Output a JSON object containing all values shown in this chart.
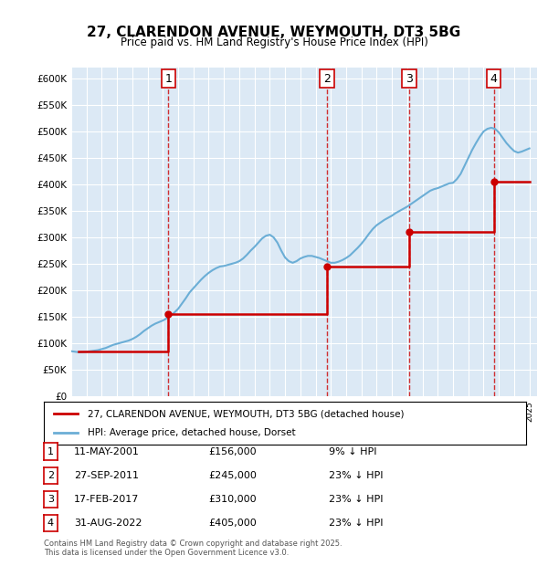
{
  "title": "27, CLARENDON AVENUE, WEYMOUTH, DT3 5BG",
  "subtitle": "Price paid vs. HM Land Registry's House Price Index (HPI)",
  "ylabel_ticks": [
    "£0",
    "£50K",
    "£100K",
    "£150K",
    "£200K",
    "£250K",
    "£300K",
    "£350K",
    "£400K",
    "£450K",
    "£500K",
    "£550K",
    "£600K"
  ],
  "ylim": [
    0,
    620000
  ],
  "xlim_start": 1995.0,
  "xlim_end": 2025.5,
  "transactions": [
    {
      "num": 1,
      "date": "11-MAY-2001",
      "price": 156000,
      "pct": "9%",
      "x": 2001.36
    },
    {
      "num": 2,
      "date": "27-SEP-2011",
      "price": 245000,
      "pct": "23%",
      "x": 2011.74
    },
    {
      "num": 3,
      "date": "17-FEB-2017",
      "price": 310000,
      "pct": "23%",
      "x": 2017.12
    },
    {
      "num": 4,
      "date": "31-AUG-2022",
      "price": 405000,
      "pct": "23%",
      "x": 2022.66
    }
  ],
  "legend_line1": "27, CLARENDON AVENUE, WEYMOUTH, DT3 5BG (detached house)",
  "legend_line2": "HPI: Average price, detached house, Dorset",
  "footer1": "Contains HM Land Registry data © Crown copyright and database right 2025.",
  "footer2": "This data is licensed under the Open Government Licence v3.0.",
  "hpi_color": "#6baed6",
  "price_color": "#cc0000",
  "background_color": "#dce9f5",
  "plot_bg": "#dce9f5",
  "grid_color": "#ffffff",
  "dashed_color": "#cc0000",
  "hpi_data_x": [
    1995.0,
    1995.25,
    1995.5,
    1995.75,
    1996.0,
    1996.25,
    1996.5,
    1996.75,
    1997.0,
    1997.25,
    1997.5,
    1997.75,
    1998.0,
    1998.25,
    1998.5,
    1998.75,
    1999.0,
    1999.25,
    1999.5,
    1999.75,
    2000.0,
    2000.25,
    2000.5,
    2000.75,
    2001.0,
    2001.25,
    2001.5,
    2001.75,
    2002.0,
    2002.25,
    2002.5,
    2002.75,
    2003.0,
    2003.25,
    2003.5,
    2003.75,
    2004.0,
    2004.25,
    2004.5,
    2004.75,
    2005.0,
    2005.25,
    2005.5,
    2005.75,
    2006.0,
    2006.25,
    2006.5,
    2006.75,
    2007.0,
    2007.25,
    2007.5,
    2007.75,
    2008.0,
    2008.25,
    2008.5,
    2008.75,
    2009.0,
    2009.25,
    2009.5,
    2009.75,
    2010.0,
    2010.25,
    2010.5,
    2010.75,
    2011.0,
    2011.25,
    2011.5,
    2011.75,
    2012.0,
    2012.25,
    2012.5,
    2012.75,
    2013.0,
    2013.25,
    2013.5,
    2013.75,
    2014.0,
    2014.25,
    2014.5,
    2014.75,
    2015.0,
    2015.25,
    2015.5,
    2015.75,
    2016.0,
    2016.25,
    2016.5,
    2016.75,
    2017.0,
    2017.25,
    2017.5,
    2017.75,
    2018.0,
    2018.25,
    2018.5,
    2018.75,
    2019.0,
    2019.25,
    2019.5,
    2019.75,
    2020.0,
    2020.25,
    2020.5,
    2020.75,
    2021.0,
    2021.25,
    2021.5,
    2021.75,
    2022.0,
    2022.25,
    2022.5,
    2022.75,
    2023.0,
    2023.25,
    2023.5,
    2023.75,
    2024.0,
    2024.25,
    2024.5,
    2024.75,
    2025.0
  ],
  "hpi_data_y": [
    85000,
    84000,
    83000,
    83500,
    84000,
    85000,
    86000,
    87000,
    89000,
    91000,
    94000,
    97000,
    99000,
    101000,
    103000,
    105000,
    108000,
    112000,
    117000,
    123000,
    128000,
    133000,
    137000,
    140000,
    143000,
    147000,
    152000,
    158000,
    165000,
    175000,
    185000,
    196000,
    204000,
    212000,
    220000,
    227000,
    233000,
    238000,
    242000,
    245000,
    246000,
    248000,
    250000,
    252000,
    255000,
    260000,
    267000,
    275000,
    282000,
    290000,
    298000,
    303000,
    305000,
    300000,
    290000,
    275000,
    262000,
    255000,
    252000,
    255000,
    260000,
    263000,
    265000,
    265000,
    263000,
    261000,
    258000,
    255000,
    252000,
    252000,
    254000,
    257000,
    261000,
    266000,
    273000,
    280000,
    288000,
    297000,
    307000,
    316000,
    323000,
    328000,
    333000,
    337000,
    341000,
    346000,
    350000,
    354000,
    358000,
    363000,
    368000,
    373000,
    378000,
    383000,
    388000,
    391000,
    393000,
    396000,
    399000,
    402000,
    403000,
    410000,
    420000,
    435000,
    450000,
    465000,
    478000,
    490000,
    500000,
    505000,
    507000,
    505000,
    498000,
    488000,
    478000,
    470000,
    463000,
    460000,
    462000,
    465000,
    468000
  ],
  "price_data_x": [
    1995.5,
    2001.36,
    2001.36,
    2011.74,
    2011.74,
    2017.12,
    2017.12,
    2022.66,
    2022.66,
    2025.0
  ],
  "price_data_y": [
    85000,
    85000,
    156000,
    156000,
    245000,
    245000,
    310000,
    310000,
    405000,
    405000
  ]
}
